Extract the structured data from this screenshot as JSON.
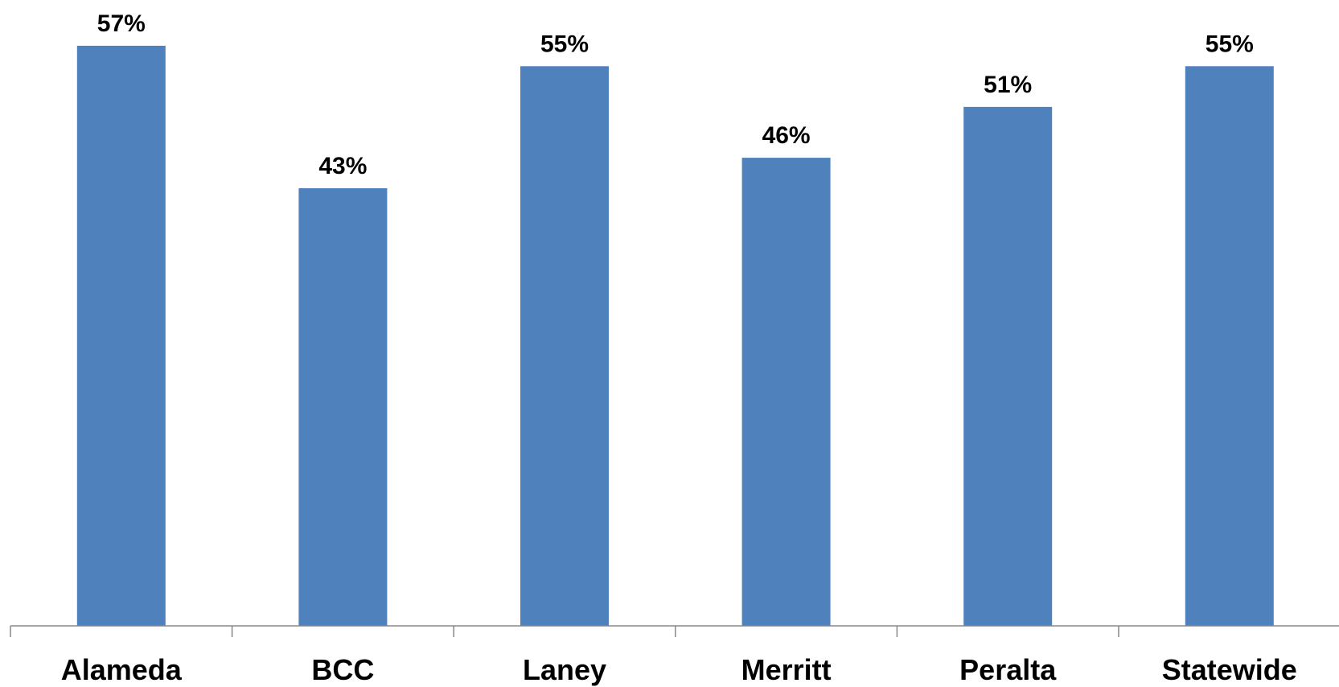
{
  "chart_data": {
    "type": "bar",
    "categories": [
      "Alameda",
      "BCC",
      "Laney",
      "Merritt",
      "Peralta",
      "Statewide"
    ],
    "values": [
      57,
      43,
      55,
      46,
      51,
      55
    ],
    "value_labels": [
      "57%",
      "43%",
      "55%",
      "46%",
      "51%",
      "55%"
    ],
    "title": "",
    "xlabel": "",
    "ylabel": "",
    "ylim": [
      0,
      60
    ],
    "grid": false,
    "legend": "none",
    "colors": {
      "bar": "#4F81BD",
      "axis": "#888888",
      "text": "#000000"
    }
  }
}
